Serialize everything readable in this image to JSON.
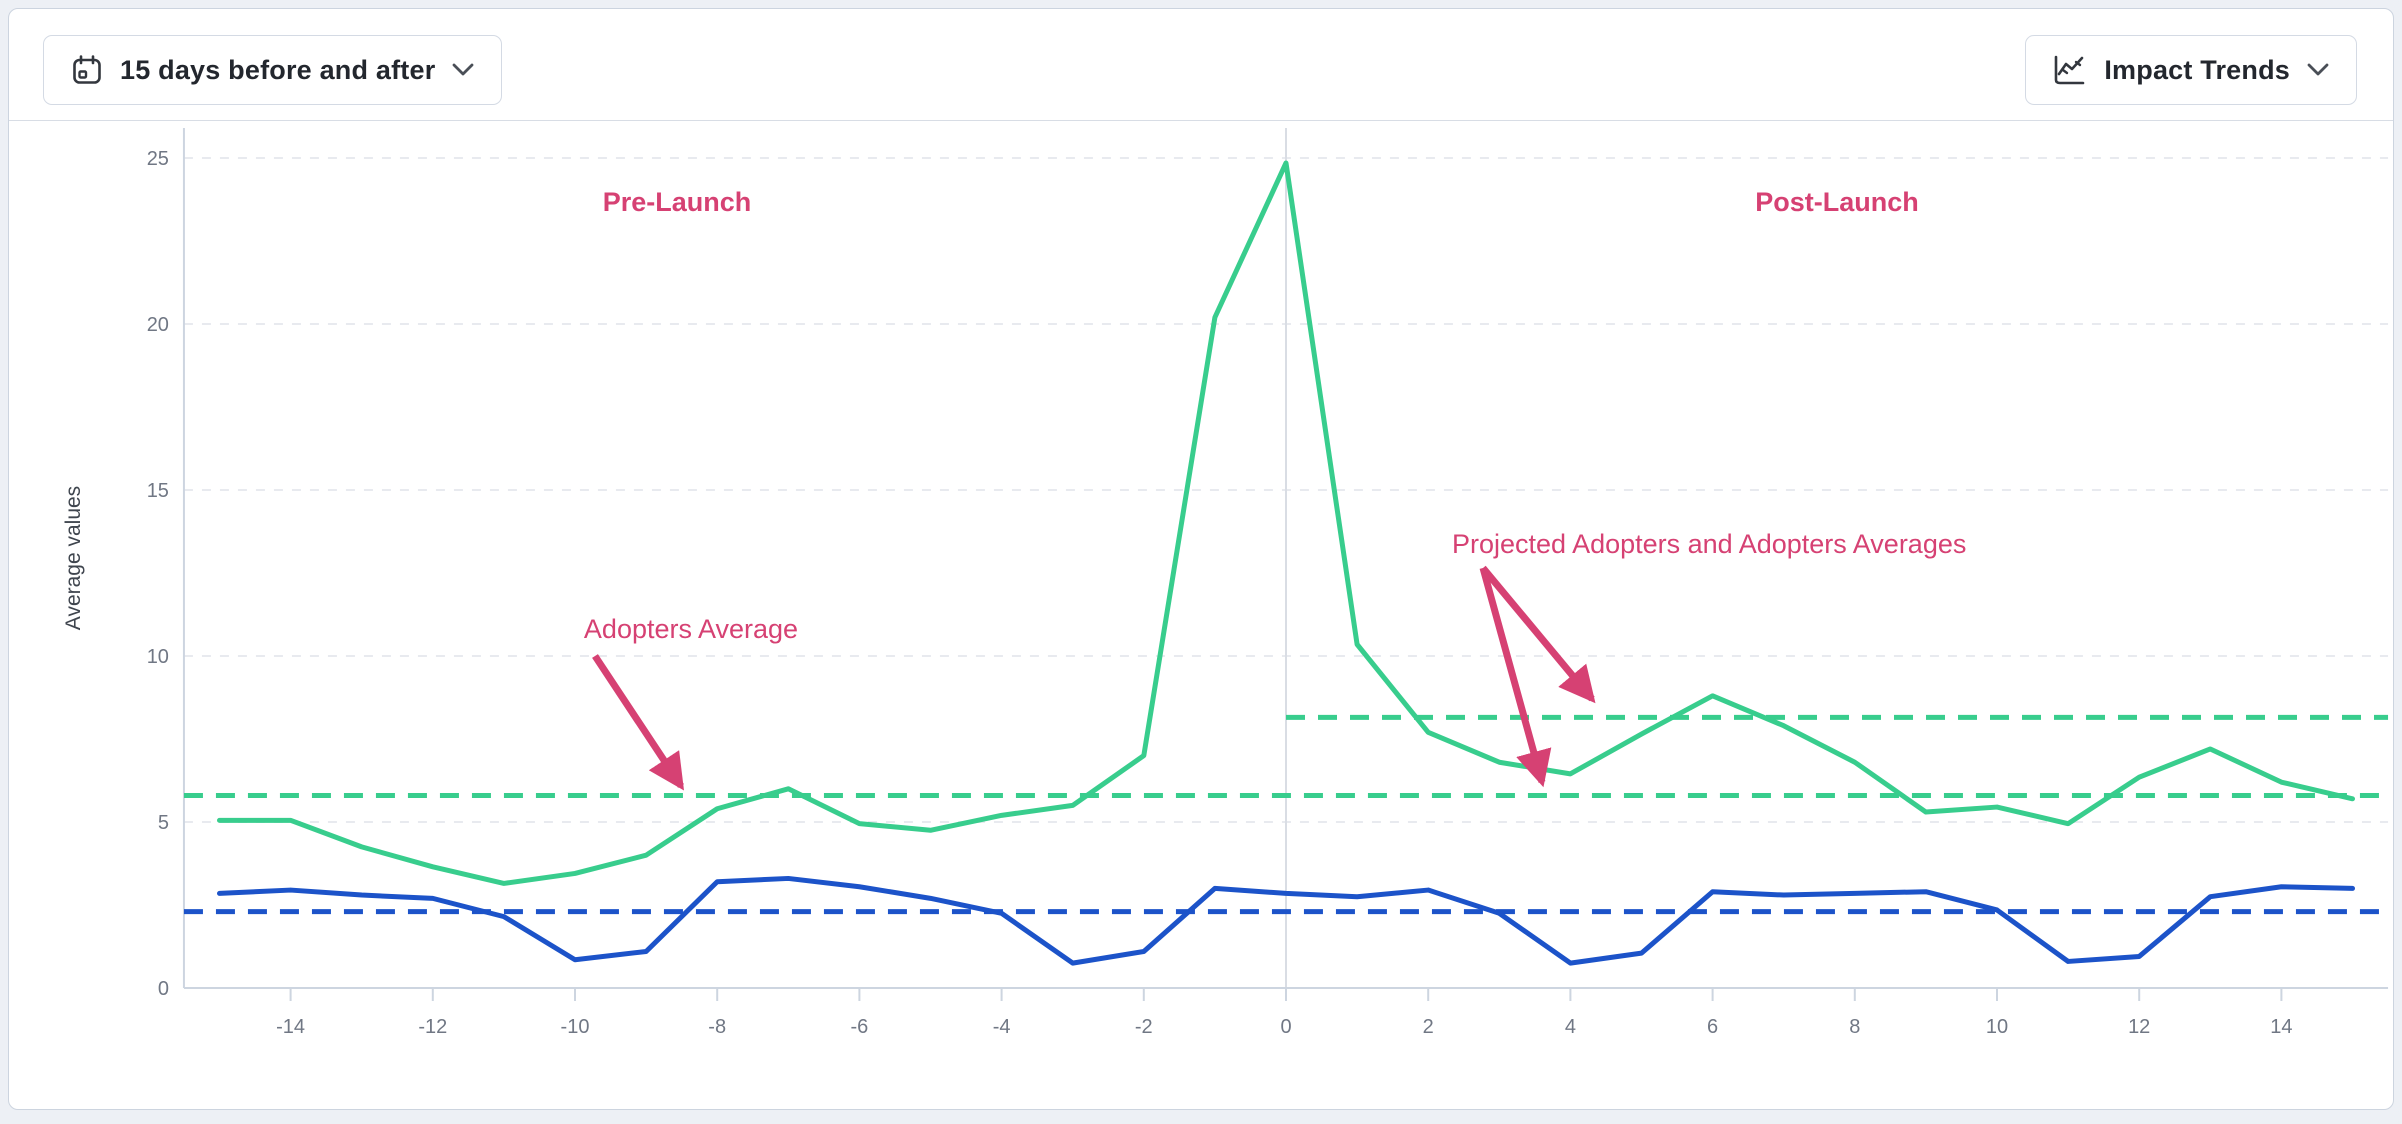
{
  "header": {
    "date_range_button": {
      "label": "15 days before and after",
      "icon": "calendar-icon",
      "state": "collapsed"
    },
    "trends_button": {
      "label": "Impact Trends",
      "icon": "trend-chart-icon",
      "state": "collapsed"
    }
  },
  "colors": {
    "adopters_green": "#38cd8d",
    "comparison_blue": "#1c53c9",
    "annotation_pink": "#d64173",
    "axis_gray": "#cdd5e0",
    "grid_gray": "#e8eaef",
    "launch_line_gray": "#d9dde4",
    "tick_text": "#707784",
    "page_background": "#edf0f5",
    "card_background": "#ffffff"
  },
  "chart_data": {
    "type": "line",
    "title": "",
    "xlabel": "",
    "ylabel": "Average values",
    "xlim": [
      -15.5,
      15.5
    ],
    "ylim": [
      0,
      25.9
    ],
    "x_ticks": [
      -14,
      -12,
      -10,
      -8,
      -6,
      -4,
      -2,
      0,
      2,
      4,
      6,
      8,
      10,
      12,
      14
    ],
    "y_ticks": [
      0,
      5,
      10,
      15,
      20,
      25
    ],
    "grid": "horizontal-dashed",
    "launch_marker_x": 0,
    "x": [
      -15,
      -14,
      -13,
      -12,
      -11,
      -10,
      -9,
      -8,
      -7,
      -6,
      -5,
      -4,
      -3,
      -2,
      -1,
      0,
      1,
      2,
      3,
      4,
      5,
      6,
      7,
      8,
      9,
      10,
      11,
      12,
      13,
      14,
      15
    ],
    "series": [
      {
        "name": "adopters",
        "color": "#38cd8d",
        "style": "solid",
        "values": [
          5.05,
          5.05,
          4.25,
          3.65,
          3.15,
          3.45,
          4.0,
          5.4,
          6.0,
          4.95,
          4.75,
          5.2,
          5.5,
          7.0,
          20.2,
          24.85,
          10.35,
          7.7,
          6.8,
          6.45,
          7.65,
          8.8,
          7.9,
          6.8,
          5.3,
          5.45,
          4.95,
          6.35,
          7.2,
          6.2,
          5.7
        ]
      },
      {
        "name": "comparison",
        "color": "#1c53c9",
        "style": "solid",
        "values": [
          2.85,
          2.95,
          2.8,
          2.7,
          2.15,
          0.85,
          1.1,
          3.2,
          3.3,
          3.05,
          2.7,
          2.25,
          0.75,
          1.1,
          3.0,
          2.85,
          2.75,
          2.95,
          2.25,
          0.75,
          1.05,
          2.9,
          2.8,
          2.85,
          2.9,
          2.35,
          0.8,
          0.95,
          2.75,
          3.05,
          3.0
        ]
      }
    ],
    "reference_lines": [
      {
        "name": "adopters-average",
        "value": 5.8,
        "color": "#38cd8d",
        "style": "dashed",
        "span": [
          -15.5,
          15.5
        ]
      },
      {
        "name": "projected-adopters-average",
        "value": 8.15,
        "color": "#38cd8d",
        "style": "dashed",
        "span": [
          0,
          15.5
        ]
      },
      {
        "name": "comparison-average",
        "value": 2.3,
        "color": "#1c53c9",
        "style": "dashed",
        "span": [
          -15.5,
          15.5
        ]
      }
    ],
    "annotations": {
      "pre_launch": "Pre-Launch",
      "post_launch": "Post-Launch",
      "adopters_average": "Adopters Average",
      "projected": "Projected Adopters and Adopters Averages"
    }
  }
}
